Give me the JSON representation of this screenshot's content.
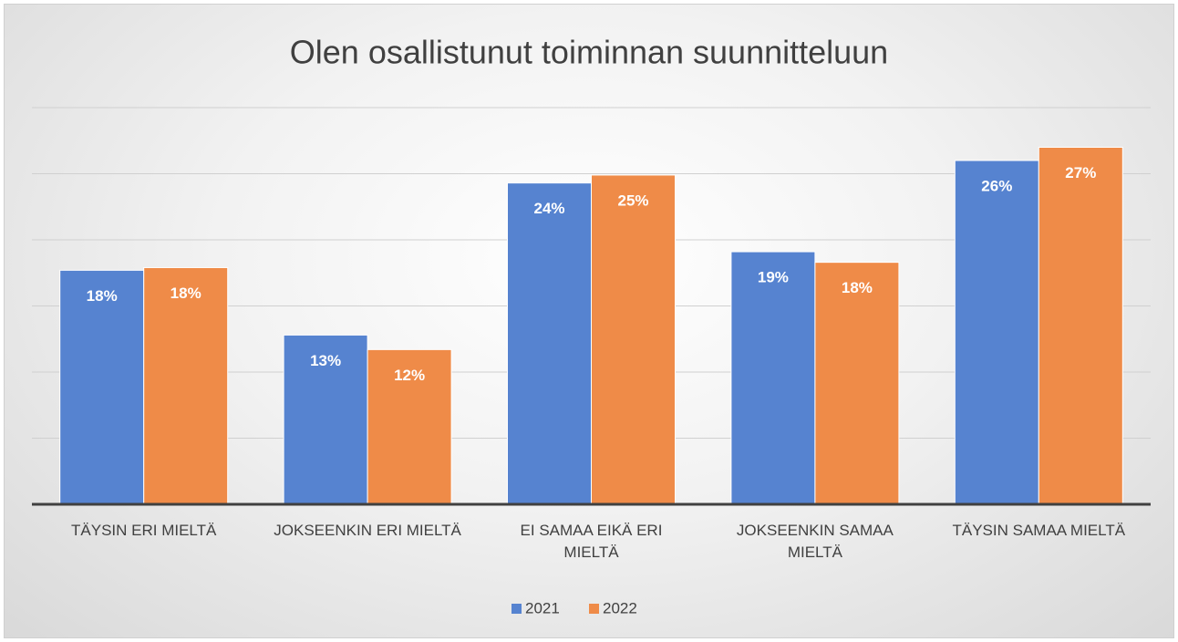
{
  "chart_data": {
    "type": "bar",
    "title": "Olen osallistunut toiminnan suunnitteluun",
    "categories": [
      "TÄYSIN ERI MIELTÄ",
      "JOKSEENKIN ERI MIELTÄ",
      "EI SAMAA EIKÄ ERI MIELTÄ",
      "JOKSEENKIN SAMAA MIELTÄ",
      "TÄYSIN SAMAA MIELTÄ"
    ],
    "series": [
      {
        "name": "2021",
        "color": "#5683d0",
        "values": [
          17.7,
          12.8,
          24.3,
          19.1,
          26.0
        ],
        "value_labels": [
          "18%",
          "13%",
          "24%",
          "19%",
          "26%"
        ]
      },
      {
        "name": "2022",
        "color": "#ef8b48",
        "values": [
          17.9,
          11.7,
          24.9,
          18.3,
          27.0
        ],
        "value_labels": [
          "18%",
          "12%",
          "25%",
          "18%",
          "27%"
        ]
      }
    ],
    "ylim": [
      0,
      30
    ],
    "yticks": [
      0,
      5,
      10,
      15,
      20,
      25,
      30
    ],
    "grid": true,
    "legend": "bottom"
  }
}
